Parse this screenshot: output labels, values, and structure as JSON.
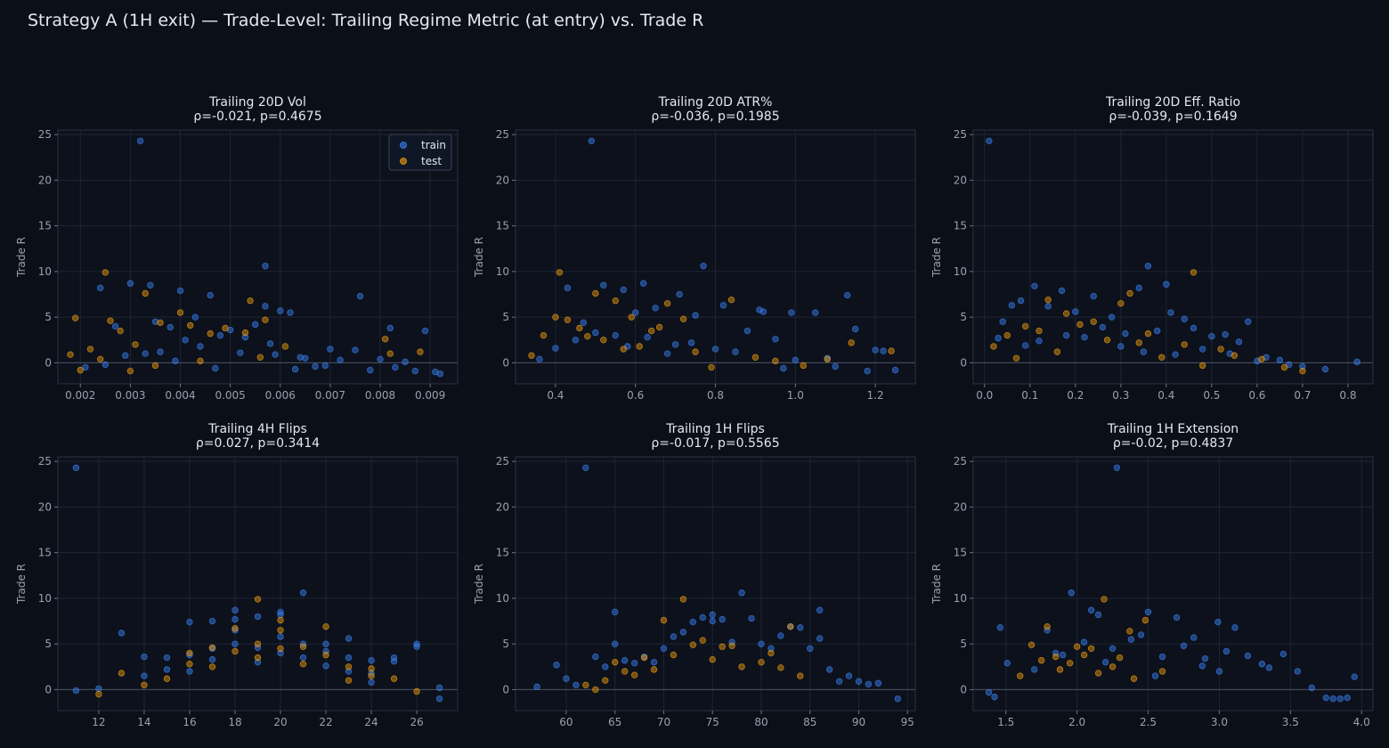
{
  "suptitle": "Strategy A (1H exit) — Trade-Level: Trailing Regime Metric (at entry) vs. Trade R",
  "colors": {
    "background": "#0b0f18",
    "train": "#3b82f6",
    "test": "#f59e0b",
    "grid": "#1e2533",
    "text": "#e6e8ee",
    "tick": "#9aa1ad"
  },
  "legend": {
    "entries": [
      "train",
      "test"
    ],
    "location": "upper-right"
  },
  "chart_data": [
    {
      "type": "scatter",
      "title": "Trailing 20D Vol",
      "stat": "ρ=-0.021, p=0.4675",
      "xlabel": "",
      "ylabel": "Trade R",
      "xlim": [
        0.00155,
        0.00955
      ],
      "ylim": [
        -2.3,
        25.5
      ],
      "xticks": [
        0.002,
        0.003,
        0.004,
        0.005,
        0.006,
        0.007,
        0.008,
        0.009
      ],
      "xtick_labels": [
        "0.002",
        "0.003",
        "0.004",
        "0.005",
        "0.006",
        "0.007",
        "0.008",
        "0.009"
      ],
      "yticks": [
        0,
        5,
        10,
        15,
        20,
        25
      ],
      "show_legend": true,
      "series": [
        {
          "name": "train",
          "x": [
            0.0032,
            0.0057,
            0.0024,
            0.003,
            0.0034,
            0.004,
            0.0046,
            0.0076,
            0.0082,
            0.0089,
            0.0057,
            0.006,
            0.0062,
            0.0027,
            0.0035,
            0.0038,
            0.0043,
            0.005,
            0.0055,
            0.0065,
            0.007,
            0.0075,
            0.008,
            0.0085,
            0.0091,
            0.0092,
            0.0069,
            0.0072,
            0.0064,
            0.0067,
            0.0058,
            0.0053,
            0.0048,
            0.0044,
            0.0041,
            0.0036,
            0.0029,
            0.0025,
            0.0021,
            0.0033,
            0.0039,
            0.0047,
            0.0052,
            0.0059,
            0.0063,
            0.0078,
            0.0083,
            0.0087
          ],
          "y": [
            24.3,
            10.6,
            8.2,
            8.7,
            8.5,
            7.9,
            7.4,
            7.3,
            3.8,
            3.5,
            6.2,
            5.7,
            5.5,
            4.0,
            4.5,
            3.9,
            5.0,
            3.6,
            4.2,
            0.5,
            1.5,
            1.4,
            0.4,
            0.1,
            -1.0,
            -1.2,
            -0.3,
            0.3,
            0.6,
            -0.4,
            2.1,
            2.8,
            3.0,
            1.8,
            2.5,
            1.2,
            0.8,
            -0.2,
            -0.5,
            1.0,
            0.2,
            -0.6,
            1.1,
            0.9,
            -0.7,
            -0.8,
            -0.5,
            -0.9
          ]
        },
        {
          "name": "test",
          "x": [
            0.0025,
            0.0033,
            0.0019,
            0.0026,
            0.0036,
            0.004,
            0.0046,
            0.0054,
            0.0057,
            0.0081,
            0.0088,
            0.0031,
            0.0022,
            0.0018,
            0.0028,
            0.0042,
            0.0049,
            0.0053,
            0.0061,
            0.0082,
            0.002,
            0.0024,
            0.0035,
            0.0044,
            0.0056,
            0.003
          ],
          "y": [
            9.9,
            7.6,
            4.9,
            4.6,
            4.4,
            5.5,
            3.2,
            6.8,
            4.7,
            2.6,
            1.2,
            2.0,
            1.5,
            0.9,
            3.5,
            4.1,
            3.8,
            3.3,
            1.8,
            1.0,
            -0.8,
            0.4,
            -0.3,
            0.2,
            0.6,
            -0.9
          ]
        }
      ]
    },
    {
      "type": "scatter",
      "title": "Trailing 20D ATR%",
      "stat": "ρ=-0.036, p=0.1985",
      "xlabel": "",
      "ylabel": "Trade R",
      "xlim": [
        0.3,
        1.3
      ],
      "ylim": [
        -2.3,
        25.5
      ],
      "xticks": [
        0.4,
        0.6,
        0.8,
        1.0,
        1.2
      ],
      "xtick_labels": [
        "0.4",
        "0.6",
        "0.8",
        "1.0",
        "1.2"
      ],
      "yticks": [
        0,
        5,
        10,
        15,
        20,
        25
      ],
      "show_legend": false,
      "series": [
        {
          "name": "train",
          "x": [
            0.49,
            0.77,
            0.43,
            0.52,
            0.57,
            0.62,
            0.71,
            1.13,
            0.91,
            0.99,
            0.65,
            0.75,
            0.6,
            0.82,
            0.92,
            1.05,
            1.15,
            1.2,
            1.22,
            1.25,
            0.95,
            0.88,
            0.7,
            0.55,
            0.47,
            0.68,
            0.8,
            1.08,
            1.0,
            0.85,
            0.74,
            0.63,
            0.58,
            0.5,
            0.45,
            0.4,
            0.36,
            0.97,
            1.1,
            1.18
          ],
          "y": [
            24.3,
            10.6,
            8.2,
            8.5,
            8.0,
            8.7,
            7.5,
            7.4,
            5.8,
            5.5,
            6.0,
            5.2,
            5.5,
            6.3,
            5.6,
            5.5,
            3.7,
            1.4,
            1.3,
            -0.8,
            2.6,
            3.5,
            2.0,
            3.0,
            4.4,
            1.0,
            1.5,
            0.5,
            0.3,
            1.2,
            2.2,
            2.8,
            1.8,
            3.3,
            2.5,
            1.6,
            0.4,
            -0.6,
            -0.4,
            -0.9
          ]
        },
        {
          "name": "test",
          "x": [
            0.41,
            0.5,
            0.4,
            0.43,
            0.46,
            0.55,
            0.59,
            0.64,
            0.68,
            0.72,
            0.84,
            1.14,
            1.24,
            0.37,
            0.34,
            0.52,
            0.61,
            0.66,
            0.75,
            0.9,
            1.02,
            1.08,
            0.48,
            0.57,
            0.79,
            0.95
          ],
          "y": [
            9.9,
            7.6,
            5.0,
            4.7,
            3.8,
            6.8,
            5.0,
            3.5,
            6.5,
            4.8,
            6.9,
            2.2,
            1.3,
            3.0,
            0.8,
            2.5,
            1.8,
            3.9,
            1.2,
            0.6,
            -0.3,
            0.4,
            2.9,
            1.5,
            -0.5,
            0.2
          ]
        }
      ]
    },
    {
      "type": "scatter",
      "title": "Trailing 20D Eff. Ratio",
      "stat": "ρ=-0.039, p=0.1649",
      "xlabel": "",
      "ylabel": "Trade R",
      "xlim": [
        -0.025,
        0.855
      ],
      "ylim": [
        -2.3,
        25.5
      ],
      "xticks": [
        0.0,
        0.1,
        0.2,
        0.3,
        0.4,
        0.5,
        0.6,
        0.7,
        0.8
      ],
      "xtick_labels": [
        "0.0",
        "0.1",
        "0.2",
        "0.3",
        "0.4",
        "0.5",
        "0.6",
        "0.7",
        "0.8"
      ],
      "yticks": [
        0,
        5,
        10,
        15,
        20,
        25
      ],
      "show_legend": false,
      "series": [
        {
          "name": "train",
          "x": [
            0.01,
            0.36,
            0.4,
            0.11,
            0.17,
            0.24,
            0.34,
            0.08,
            0.06,
            0.04,
            0.14,
            0.2,
            0.28,
            0.41,
            0.46,
            0.5,
            0.53,
            0.56,
            0.58,
            0.62,
            0.65,
            0.67,
            0.82,
            0.44,
            0.38,
            0.31,
            0.26,
            0.22,
            0.18,
            0.12,
            0.09,
            0.03,
            0.48,
            0.54,
            0.6,
            0.7,
            0.75,
            0.3,
            0.35,
            0.42
          ],
          "y": [
            24.3,
            10.6,
            8.6,
            8.4,
            7.9,
            7.3,
            8.2,
            6.8,
            6.3,
            4.5,
            6.2,
            5.6,
            5.0,
            5.5,
            3.8,
            2.9,
            3.1,
            2.3,
            4.5,
            0.6,
            0.3,
            -0.2,
            0.1,
            4.8,
            3.5,
            3.2,
            3.9,
            2.8,
            3.0,
            2.4,
            1.9,
            2.7,
            1.5,
            1.0,
            0.2,
            -0.4,
            -0.7,
            1.8,
            1.2,
            0.9
          ]
        },
        {
          "name": "test",
          "x": [
            0.46,
            0.32,
            0.14,
            0.24,
            0.3,
            0.18,
            0.09,
            0.05,
            0.02,
            0.12,
            0.21,
            0.27,
            0.36,
            0.44,
            0.52,
            0.55,
            0.61,
            0.66,
            0.7,
            0.16,
            0.39,
            0.34,
            0.07,
            0.48
          ],
          "y": [
            9.9,
            7.6,
            6.9,
            4.5,
            6.5,
            5.4,
            4.0,
            3.0,
            1.8,
            3.5,
            4.2,
            2.5,
            3.2,
            2.0,
            1.5,
            0.8,
            0.4,
            -0.5,
            -0.9,
            1.2,
            0.6,
            2.2,
            0.5,
            -0.3
          ]
        }
      ]
    },
    {
      "type": "scatter",
      "title": "Trailing 4H Flips",
      "stat": "ρ=0.027, p=0.3414",
      "xlabel": "",
      "ylabel": "Trade R",
      "xlim": [
        10.2,
        27.8
      ],
      "ylim": [
        -2.3,
        25.5
      ],
      "xticks": [
        12,
        14,
        16,
        18,
        20,
        22,
        24,
        26
      ],
      "xtick_labels": [
        "12",
        "14",
        "16",
        "18",
        "20",
        "22",
        "24",
        "26"
      ],
      "yticks": [
        0,
        5,
        10,
        15,
        20,
        25
      ],
      "show_legend": false,
      "series": [
        {
          "name": "train",
          "x": [
            11,
            11,
            12,
            13,
            14,
            14,
            15,
            15,
            16,
            16,
            16,
            17,
            17,
            17,
            18,
            18,
            18,
            18,
            19,
            19,
            19,
            20,
            20,
            20,
            20,
            21,
            21,
            21,
            22,
            22,
            22,
            23,
            23,
            23,
            24,
            24,
            24,
            25,
            25,
            26,
            26,
            27,
            27
          ],
          "y": [
            24.3,
            -0.1,
            0.1,
            6.2,
            3.6,
            1.5,
            3.5,
            2.2,
            7.4,
            3.8,
            2.0,
            7.5,
            4.5,
            3.3,
            8.7,
            7.7,
            6.5,
            5.0,
            8.0,
            4.6,
            3.0,
            8.5,
            8.2,
            5.8,
            4.0,
            10.6,
            5.0,
            3.5,
            5.0,
            4.2,
            2.6,
            5.6,
            3.5,
            2.0,
            3.2,
            1.8,
            0.8,
            3.5,
            3.1,
            5.0,
            4.7,
            0.2,
            -1.0
          ]
        },
        {
          "name": "test",
          "x": [
            12,
            13,
            14,
            15,
            16,
            16,
            17,
            17,
            18,
            18,
            19,
            19,
            19,
            20,
            20,
            20,
            21,
            21,
            22,
            22,
            23,
            23,
            24,
            24,
            25,
            26
          ],
          "y": [
            -0.5,
            1.8,
            0.5,
            1.2,
            4.0,
            2.8,
            4.6,
            2.5,
            6.7,
            4.2,
            9.9,
            5.0,
            3.5,
            7.6,
            6.5,
            4.5,
            4.7,
            2.8,
            6.9,
            3.8,
            2.5,
            1.0,
            2.3,
            1.5,
            1.2,
            -0.2
          ]
        }
      ]
    },
    {
      "type": "scatter",
      "title": "Trailing 1H Flips",
      "stat": "ρ=-0.017, p=0.5565",
      "xlabel": "",
      "ylabel": "Trade R",
      "xlim": [
        54.8,
        95.8
      ],
      "ylim": [
        -2.3,
        25.5
      ],
      "xticks": [
        60,
        65,
        70,
        75,
        80,
        85,
        90,
        95
      ],
      "xtick_labels": [
        "60",
        "65",
        "70",
        "75",
        "80",
        "85",
        "90",
        "95"
      ],
      "yticks": [
        0,
        5,
        10,
        15,
        20,
        25
      ],
      "show_legend": false,
      "series": [
        {
          "name": "train",
          "x": [
            62,
            78,
            57,
            59,
            63,
            64,
            65,
            65,
            66,
            67,
            68,
            69,
            70,
            71,
            72,
            73,
            74,
            75,
            75,
            76,
            77,
            79,
            80,
            81,
            82,
            83,
            84,
            85,
            86,
            86,
            87,
            88,
            89,
            90,
            91,
            92,
            94,
            60,
            61
          ],
          "y": [
            24.3,
            10.6,
            0.3,
            2.7,
            3.6,
            2.5,
            8.5,
            5.0,
            3.2,
            2.9,
            3.6,
            3.0,
            4.5,
            5.8,
            6.3,
            7.4,
            7.9,
            8.2,
            7.5,
            7.7,
            5.2,
            7.8,
            5.0,
            4.5,
            5.9,
            6.9,
            6.8,
            4.5,
            8.7,
            5.6,
            2.2,
            0.9,
            1.5,
            0.9,
            0.6,
            0.7,
            -1.0,
            1.2,
            0.5
          ]
        },
        {
          "name": "test",
          "x": [
            72,
            70,
            74,
            76,
            77,
            83,
            65,
            68,
            71,
            73,
            75,
            78,
            80,
            81,
            82,
            84,
            69,
            66,
            64,
            62,
            63,
            67
          ],
          "y": [
            9.9,
            7.6,
            5.4,
            4.7,
            4.8,
            6.9,
            3.0,
            3.5,
            3.8,
            4.9,
            3.3,
            2.5,
            3.0,
            4.0,
            2.4,
            1.5,
            2.2,
            2.0,
            1.0,
            0.5,
            0.0,
            1.6
          ]
        }
      ]
    },
    {
      "type": "scatter",
      "title": "Trailing 1H Extension",
      "stat": "ρ=-0.02, p=0.4837",
      "xlabel": "",
      "ylabel": "Trade R",
      "xlim": [
        1.27,
        4.08
      ],
      "ylim": [
        -2.3,
        25.5
      ],
      "xticks": [
        1.5,
        2.0,
        2.5,
        3.0,
        3.5,
        4.0
      ],
      "xtick_labels": [
        "1.5",
        "2.0",
        "2.5",
        "3.0",
        "3.5",
        "4.0"
      ],
      "yticks": [
        0,
        5,
        10,
        15,
        20,
        25
      ],
      "show_legend": false,
      "series": [
        {
          "name": "train",
          "x": [
            2.28,
            1.96,
            2.1,
            2.15,
            2.38,
            2.5,
            2.7,
            2.82,
            2.99,
            3.11,
            1.46,
            1.51,
            1.79,
            1.85,
            2.05,
            2.25,
            2.45,
            2.6,
            2.75,
            2.9,
            3.05,
            3.2,
            3.35,
            3.45,
            3.55,
            3.65,
            3.75,
            3.85,
            3.95,
            1.38,
            1.42,
            3.8,
            3.9,
            3.3,
            3.0,
            2.88,
            2.55,
            2.2,
            1.9,
            1.7
          ],
          "y": [
            24.3,
            10.6,
            8.7,
            8.2,
            5.5,
            8.5,
            7.9,
            5.7,
            7.4,
            6.8,
            6.8,
            2.9,
            6.5,
            4.0,
            5.2,
            4.5,
            6.0,
            3.6,
            4.8,
            3.4,
            4.2,
            3.7,
            2.4,
            3.9,
            2.0,
            0.2,
            -0.9,
            -1.0,
            1.4,
            -0.3,
            -0.8,
            -1.0,
            -0.9,
            2.8,
            2.0,
            2.6,
            1.5,
            3.0,
            3.8,
            2.2
          ]
        },
        {
          "name": "test",
          "x": [
            2.19,
            1.79,
            2.37,
            1.68,
            2.48,
            1.85,
            2.0,
            2.1,
            2.3,
            1.75,
            1.95,
            2.25,
            2.05,
            2.6,
            1.6,
            2.4,
            1.88,
            2.15
          ],
          "y": [
            9.9,
            6.9,
            6.4,
            4.9,
            7.6,
            3.6,
            4.7,
            4.5,
            3.5,
            3.2,
            2.9,
            2.5,
            3.8,
            2.0,
            1.5,
            1.2,
            2.2,
            1.8
          ]
        }
      ]
    }
  ]
}
